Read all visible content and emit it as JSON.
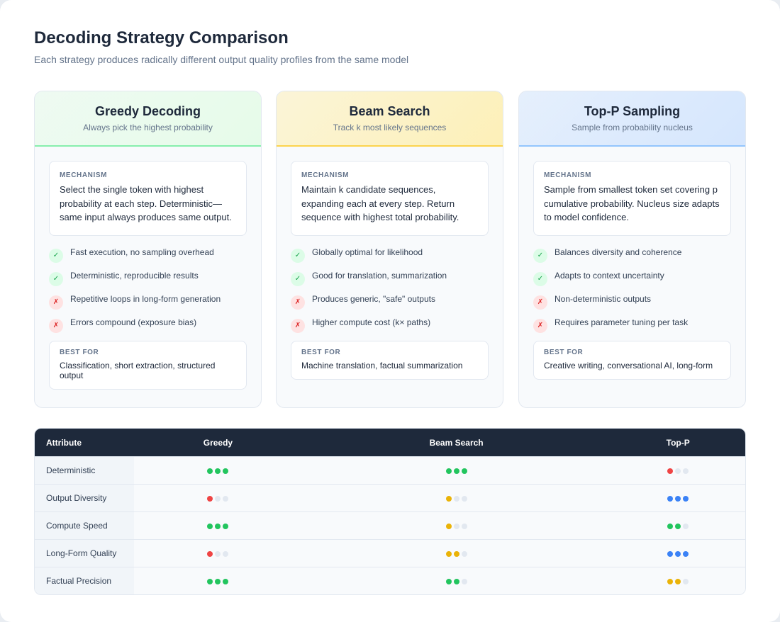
{
  "title": "Decoding Strategy Comparison",
  "subtitle": "Each strategy produces radically different output quality profiles from the same model",
  "labels": {
    "mechanism": "MECHANISM",
    "best_for": "BEST FOR"
  },
  "cards": [
    {
      "title": "Greedy Decoding",
      "subtitle": "Always pick the highest probability",
      "accent": "#86efac",
      "head_bg": "#e6fbe9",
      "mechanism": "Select the single token with highest probability at each step. Deterministic—same input always produces same output.",
      "items": [
        {
          "type": "pro",
          "text": "Fast execution, no sampling overhead"
        },
        {
          "type": "pro",
          "text": "Deterministic, reproducible results"
        },
        {
          "type": "con",
          "text": "Repetitive loops in long-form generation"
        },
        {
          "type": "con",
          "text": "Errors compound (exposure bias)"
        }
      ],
      "best_for": "Classification, short extraction, structured output"
    },
    {
      "title": "Beam Search",
      "subtitle": "Track k most likely sequences",
      "accent": "#fcd34d",
      "head_bg": "#fdf0b8",
      "mechanism": "Maintain k candidate sequences, expanding each at every step. Return sequence with highest total probability.",
      "items": [
        {
          "type": "pro",
          "text": "Globally optimal for likelihood"
        },
        {
          "type": "pro",
          "text": "Good for translation, summarization"
        },
        {
          "type": "con",
          "text": "Produces generic, \"safe\" outputs"
        },
        {
          "type": "con",
          "text": "Higher compute cost (k× paths)"
        }
      ],
      "best_for": "Machine translation, factual summarization"
    },
    {
      "title": "Top-P Sampling",
      "subtitle": "Sample from probability nucleus",
      "accent": "#93c5fd",
      "head_bg": "#d5e6fd",
      "mechanism": "Sample from smallest token set covering p cumulative probability. Nucleus size adapts to model confidence.",
      "items": [
        {
          "type": "pro",
          "text": "Balances diversity and coherence"
        },
        {
          "type": "pro",
          "text": "Adapts to context uncertainty"
        },
        {
          "type": "con",
          "text": "Non-deterministic outputs"
        },
        {
          "type": "con",
          "text": "Requires parameter tuning per task"
        }
      ],
      "best_for": "Creative writing, conversational AI, long-form"
    }
  ],
  "icons": {
    "pro": "✓",
    "con": "✗"
  },
  "table": {
    "headers": [
      "Attribute",
      "Greedy",
      "Beam Search",
      "Top-P"
    ],
    "max_score": 3,
    "rows": [
      {
        "attribute": "Deterministic",
        "scores": [
          {
            "score": 3,
            "color": "#22c55e"
          },
          {
            "score": 3,
            "color": "#22c55e"
          },
          {
            "score": 1,
            "color": "#ef4444"
          }
        ]
      },
      {
        "attribute": "Output Diversity",
        "scores": [
          {
            "score": 1,
            "color": "#ef4444"
          },
          {
            "score": 1,
            "color": "#eab308"
          },
          {
            "score": 3,
            "color": "#3b82f6"
          }
        ]
      },
      {
        "attribute": "Compute Speed",
        "scores": [
          {
            "score": 3,
            "color": "#22c55e"
          },
          {
            "score": 1,
            "color": "#eab308"
          },
          {
            "score": 2,
            "color": "#22c55e"
          }
        ]
      },
      {
        "attribute": "Long-Form Quality",
        "scores": [
          {
            "score": 1,
            "color": "#ef4444"
          },
          {
            "score": 2,
            "color": "#eab308"
          },
          {
            "score": 3,
            "color": "#3b82f6"
          }
        ]
      },
      {
        "attribute": "Factual Precision",
        "scores": [
          {
            "score": 3,
            "color": "#22c55e"
          },
          {
            "score": 2,
            "color": "#22c55e"
          },
          {
            "score": 2,
            "color": "#eab308"
          }
        ]
      }
    ]
  }
}
